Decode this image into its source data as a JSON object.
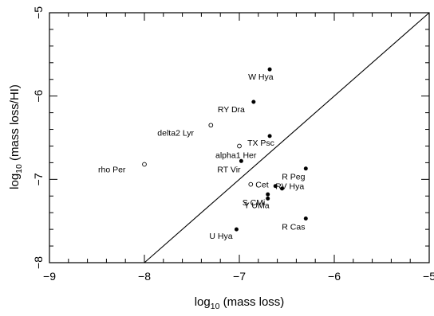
{
  "chart_data": {
    "type": "scatter",
    "xlabel": "log10 (mass loss)",
    "ylabel": "log10 (mass loss/HI)",
    "xlim": [
      -9,
      -5
    ],
    "ylim": [
      -8,
      -5
    ],
    "x_ticks": [
      -9,
      -8,
      -7,
      -6,
      -5
    ],
    "y_ticks": [
      -8,
      -7,
      -6,
      -5
    ],
    "x_tick_labels": [
      "−9",
      "−8",
      "−7",
      "−6",
      "−5"
    ],
    "y_tick_labels": [
      "−8",
      "−7",
      "−6",
      "−5"
    ],
    "grid": false,
    "reference_line": {
      "from": [
        -8,
        -8
      ],
      "to": [
        -5,
        -5
      ]
    },
    "points": [
      {
        "label": "W Hya",
        "x": -6.68,
        "y": -5.68,
        "marker": "filled"
      },
      {
        "label": "RY Dra",
        "x": -6.85,
        "y": -6.07,
        "marker": "filled"
      },
      {
        "label": "delta2 Lyr",
        "x": -7.3,
        "y": -6.35,
        "marker": "open"
      },
      {
        "label": "TX Psc",
        "x": -6.68,
        "y": -6.48,
        "marker": "filled"
      },
      {
        "label": "alpha1 Her",
        "x": -7.0,
        "y": -6.6,
        "marker": "open"
      },
      {
        "label": "RT Vir",
        "x": -6.98,
        "y": -6.78,
        "marker": "filled"
      },
      {
        "label": "rho Per",
        "x": -8.0,
        "y": -6.82,
        "marker": "open"
      },
      {
        "label": "R Peg",
        "x": -6.3,
        "y": -6.87,
        "marker": "filled"
      },
      {
        "label": "Cet",
        "x": -6.88,
        "y": -7.06,
        "marker": "open"
      },
      {
        "label": "RV Hya",
        "x": -6.62,
        "y": -7.08,
        "marker": "filled"
      },
      {
        "label": "",
        "x": -6.55,
        "y": -7.11,
        "marker": "filled"
      },
      {
        "label": "S CMi",
        "x": -6.7,
        "y": -7.18,
        "marker": "filled"
      },
      {
        "label": "Y UMa",
        "x": -6.7,
        "y": -7.23,
        "marker": "filled"
      },
      {
        "label": "R Cas",
        "x": -6.3,
        "y": -7.47,
        "marker": "filled"
      },
      {
        "label": "U Hya",
        "x": -7.03,
        "y": -7.6,
        "marker": "filled"
      }
    ]
  }
}
